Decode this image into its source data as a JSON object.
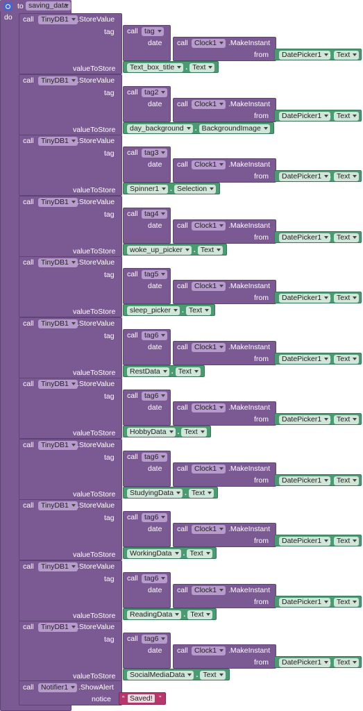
{
  "procedure": {
    "keyword_to": "to",
    "name": "saving_data",
    "keyword_do": "do"
  },
  "labels": {
    "call": "call",
    "store_value": ".StoreValue",
    "tag": "tag",
    "date": "date",
    "make_instant": ".MakeInstant",
    "from": "from",
    "value_to_store": "valueToStore",
    "dot": ".",
    "show_alert": ".ShowAlert",
    "notice": "notice"
  },
  "components": {
    "tinydb": "TinyDB1",
    "clock": "Clock1",
    "datepicker": "DatePicker1",
    "datepicker_prop": "Text",
    "notifier": "Notifier1"
  },
  "stores": [
    {
      "tag_proc": "tag",
      "component": "Text_box_title",
      "property": "Text"
    },
    {
      "tag_proc": "tag2",
      "component": "day_background",
      "property": "BackgroundImage"
    },
    {
      "tag_proc": "tag3",
      "component": "Spinner1",
      "property": "Selection"
    },
    {
      "tag_proc": "tag4",
      "component": "woke_up_picker",
      "property": "Text"
    },
    {
      "tag_proc": "tag5",
      "component": "sleep_picker",
      "property": "Text"
    },
    {
      "tag_proc": "tag6",
      "component": "RestData",
      "property": "Text"
    },
    {
      "tag_proc": "tag6",
      "component": "HobbyData",
      "property": "Text"
    },
    {
      "tag_proc": "tag6",
      "component": "StudyingData",
      "property": "Text"
    },
    {
      "tag_proc": "tag6",
      "component": "WorkingData",
      "property": "Text"
    },
    {
      "tag_proc": "tag6",
      "component": "ReadingData",
      "property": "Text"
    },
    {
      "tag_proc": "tag6",
      "component": "SocialMediaData",
      "property": "Text"
    }
  ],
  "alert": {
    "open_quote": "“",
    "message": "Saved!",
    "close_quote": "”"
  },
  "colors": {
    "procedure": "#7b5a94",
    "component": "#4a9a72",
    "text": "#b8366b"
  }
}
